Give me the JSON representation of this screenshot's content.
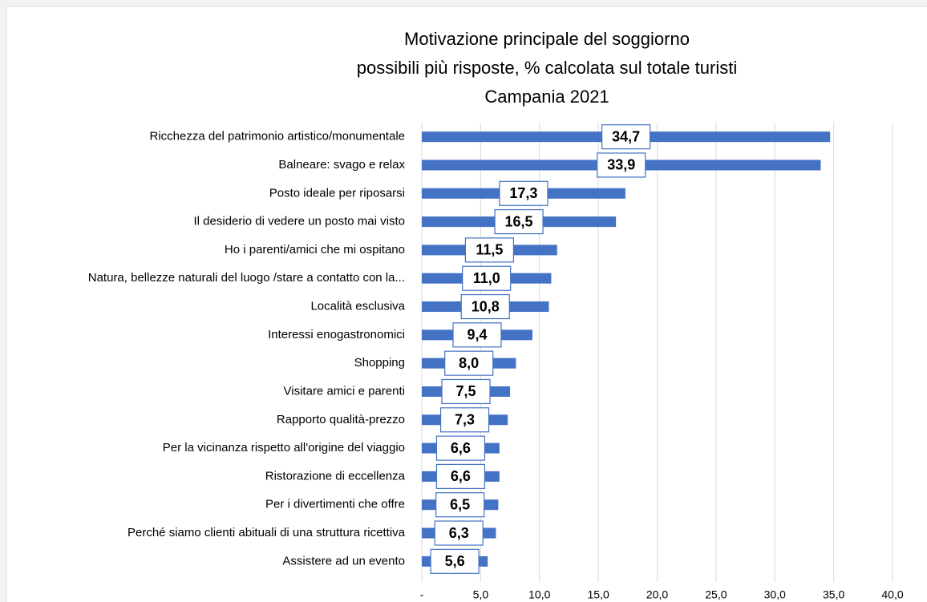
{
  "chart_data": {
    "type": "bar",
    "orientation": "horizontal",
    "title_lines": [
      "Motivazione principale del soggiorno",
      "possibili più risposte, % calcolata sul totale turisti",
      "Campania 2021"
    ],
    "categories": [
      "Ricchezza del patrimonio artistico/monumentale",
      "Balneare: svago e relax",
      "Posto ideale per riposarsi",
      "Il desiderio di vedere un posto mai visto",
      "Ho i parenti/amici che mi ospitano",
      "Natura, bellezze naturali del luogo /stare a contatto con la...",
      "Località esclusiva",
      "Interessi enogastronomici",
      "Shopping",
      "Visitare amici e parenti",
      "Rapporto qualità-prezzo",
      "Per la vicinanza rispetto all'origine del viaggio",
      "Ristorazione di eccellenza",
      "Per i divertimenti che offre",
      "Perché siamo clienti abituali di una struttura ricettiva",
      "Assistere ad un evento"
    ],
    "values": [
      34.7,
      33.9,
      17.3,
      16.5,
      11.5,
      11.0,
      10.8,
      9.4,
      8.0,
      7.5,
      7.3,
      6.6,
      6.6,
      6.5,
      6.3,
      5.6
    ],
    "value_labels": [
      "34,7",
      "33,9",
      "17,3",
      "16,5",
      "11,5",
      "11,0",
      "10,8",
      "9,4",
      "8,0",
      "7,5",
      "7,3",
      "6,6",
      "6,6",
      "6,5",
      "6,3",
      "5,6"
    ],
    "color": "#4472c4",
    "xlim": [
      0,
      40
    ],
    "xticks": [
      {
        "value": 0,
        "label": "-"
      },
      {
        "value": 5,
        "label": "5,0"
      },
      {
        "value": 10,
        "label": "10,0"
      },
      {
        "value": 15,
        "label": "15,0"
      },
      {
        "value": 20,
        "label": "20,0"
      },
      {
        "value": 25,
        "label": "25,0"
      },
      {
        "value": 30,
        "label": "30,0"
      },
      {
        "value": 35,
        "label": "35,0"
      },
      {
        "value": 40,
        "label": "40,0"
      }
    ],
    "grid": true
  }
}
